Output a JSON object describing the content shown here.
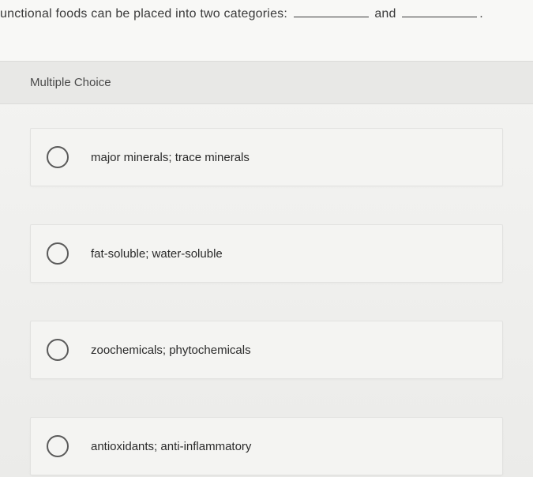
{
  "question": {
    "prefix": "unctional foods can be placed into two categories:",
    "connector": "and",
    "suffix": "."
  },
  "section_label": "Multiple Choice",
  "options": [
    {
      "label": "major minerals; trace minerals"
    },
    {
      "label": "fat-soluble; water-soluble"
    },
    {
      "label": "zoochemicals; phytochemicals"
    },
    {
      "label": "antioxidants; anti-inflammatory"
    }
  ],
  "styling": {
    "body_width": 675,
    "body_height": 604,
    "background_top": "#f5f5f3",
    "background_bottom": "#ebebe9",
    "question_font_size": 16,
    "question_color": "#3a3a3a",
    "blank_width": 95,
    "mc_header_bg": "#e8e8e6",
    "mc_header_color": "#4a4a4a",
    "option_bg": "#f4f4f2",
    "option_border": "#e2e2e0",
    "option_text_color": "#2a2a2a",
    "option_font_size": 15,
    "radio_size": 28,
    "radio_border_color": "#5a5a5a",
    "radio_border_width": 2.5,
    "option_gap": 48
  }
}
